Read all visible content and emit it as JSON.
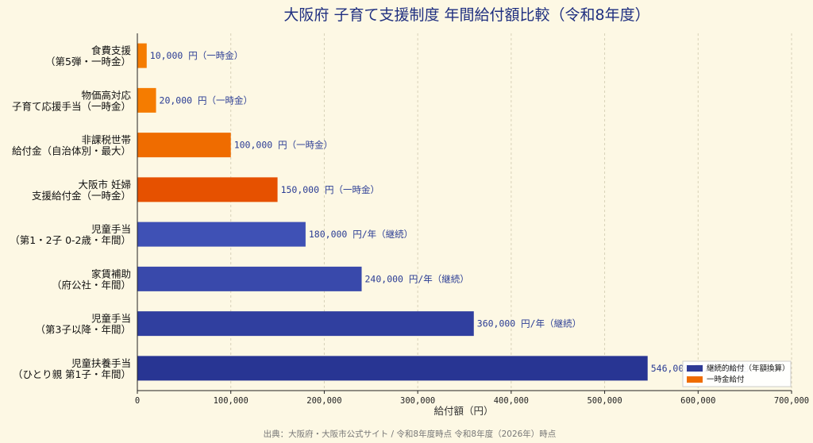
{
  "chart_data": {
    "type": "bar",
    "orientation": "horizontal",
    "title": "大阪府 子育て支援制度 年間給付額比較（令和8年度）",
    "xlabel": "給付額（円）",
    "xlim": [
      0,
      700000
    ],
    "xticks": [
      "0",
      "100,000",
      "200,000",
      "300,000",
      "400,000",
      "500,000",
      "600,000",
      "700,000"
    ],
    "grid": true,
    "legend_position": "bottom-right",
    "legend": [
      {
        "label": "継続的給付（年額換算）",
        "color": "#2e3a96"
      },
      {
        "label": "一時金給付",
        "color": "#ef6c00"
      }
    ],
    "bars": [
      {
        "label": [
          "食費支援",
          "（第5弾・一時金）"
        ],
        "value": 10000,
        "data_label": "10,000 円（一時金）",
        "color": "#f57c00"
      },
      {
        "label": [
          "物価高対応",
          "子育て応援手当（一時金）"
        ],
        "value": 20000,
        "data_label": "20,000 円（一時金）",
        "color": "#f57c00"
      },
      {
        "label": [
          "非課税世帯",
          "給付金（自治体別・最大）"
        ],
        "value": 100000,
        "data_label": "100,000 円（一時金）",
        "color": "#ef6c00"
      },
      {
        "label": [
          "大阪市 妊婦",
          "支援給付金（一時金）"
        ],
        "value": 150000,
        "data_label": "150,000 円（一時金）",
        "color": "#e65100"
      },
      {
        "label": [
          "児童手当",
          "（第1・2子 0-2歳・年間）"
        ],
        "value": 180000,
        "data_label": "180,000 円/年（継続）",
        "color": "#3f51b5"
      },
      {
        "label": [
          "家賃補助",
          "（府公社・年間）"
        ],
        "value": 240000,
        "data_label": "240,000 円/年（継続）",
        "color": "#3949ab"
      },
      {
        "label": [
          "児童手当",
          "（第3子以降・年間）"
        ],
        "value": 360000,
        "data_label": "360,000 円/年（継続）",
        "color": "#303f9f"
      },
      {
        "label": [
          "児童扶養手当",
          "（ひとり親 第1子・年間）"
        ],
        "value": 546000,
        "data_label": "546,000 円/年（継続）",
        "color": "#283593"
      }
    ],
    "source": "出典：大阪府・大阪市公式サイト / 令和8年度時点 令和8年度（2026年）時点"
  }
}
